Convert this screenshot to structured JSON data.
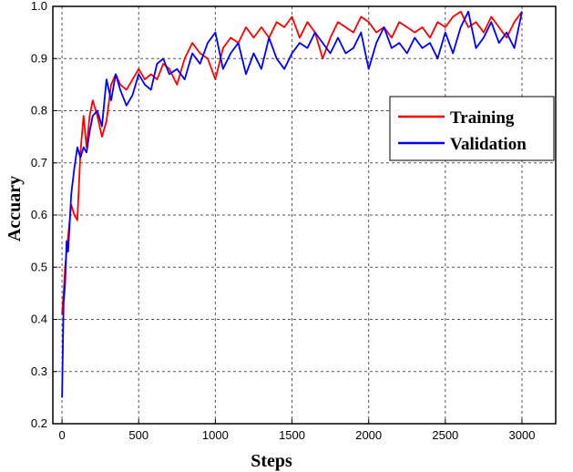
{
  "chart_data": {
    "type": "line",
    "xlabel": "Steps",
    "ylabel": "Accuary",
    "xlim": [
      -60,
      3220
    ],
    "ylim": [
      0.2,
      1.0
    ],
    "x_ticks": [
      "0",
      "500",
      "1000",
      "1500",
      "2000",
      "2500",
      "3000"
    ],
    "y_ticks": [
      "0.2",
      "0.3",
      "0.4",
      "0.5",
      "0.6",
      "0.7",
      "0.8",
      "0.9",
      "1.0"
    ],
    "grid": true,
    "legend_position": "right",
    "series": [
      {
        "name": "Training",
        "color": "#ff0000",
        "x": [
          0,
          10,
          20,
          30,
          40,
          60,
          80,
          100,
          120,
          140,
          160,
          180,
          200,
          230,
          260,
          290,
          320,
          350,
          380,
          420,
          460,
          500,
          540,
          580,
          620,
          660,
          700,
          750,
          800,
          850,
          900,
          950,
          1000,
          1050,
          1100,
          1150,
          1200,
          1250,
          1300,
          1350,
          1400,
          1450,
          1500,
          1550,
          1600,
          1650,
          1700,
          1750,
          1800,
          1850,
          1900,
          1950,
          2000,
          2050,
          2100,
          2150,
          2200,
          2250,
          2300,
          2350,
          2400,
          2450,
          2500,
          2550,
          2600,
          2650,
          2700,
          2750,
          2800,
          2850,
          2900,
          2950,
          3000
        ],
        "y": [
          0.41,
          0.45,
          0.5,
          0.53,
          0.56,
          0.62,
          0.6,
          0.59,
          0.72,
          0.79,
          0.73,
          0.79,
          0.82,
          0.79,
          0.75,
          0.78,
          0.85,
          0.87,
          0.85,
          0.84,
          0.86,
          0.88,
          0.86,
          0.87,
          0.86,
          0.89,
          0.88,
          0.85,
          0.9,
          0.93,
          0.91,
          0.9,
          0.86,
          0.92,
          0.94,
          0.93,
          0.96,
          0.94,
          0.96,
          0.94,
          0.97,
          0.96,
          0.98,
          0.94,
          0.97,
          0.95,
          0.9,
          0.94,
          0.97,
          0.96,
          0.95,
          0.98,
          0.97,
          0.95,
          0.96,
          0.94,
          0.97,
          0.96,
          0.95,
          0.96,
          0.94,
          0.97,
          0.96,
          0.98,
          0.99,
          0.96,
          0.97,
          0.95,
          0.98,
          0.96,
          0.94,
          0.97,
          0.99
        ]
      },
      {
        "name": "Validation",
        "color": "#0000ff",
        "x": [
          0,
          10,
          20,
          30,
          40,
          60,
          80,
          100,
          120,
          140,
          160,
          180,
          200,
          230,
          260,
          290,
          320,
          350,
          380,
          420,
          460,
          500,
          540,
          580,
          620,
          660,
          700,
          750,
          800,
          850,
          900,
          950,
          1000,
          1050,
          1100,
          1150,
          1200,
          1250,
          1300,
          1350,
          1400,
          1450,
          1500,
          1550,
          1600,
          1650,
          1700,
          1750,
          1800,
          1850,
          1900,
          1950,
          2000,
          2050,
          2100,
          2150,
          2200,
          2250,
          2300,
          2350,
          2400,
          2450,
          2500,
          2550,
          2600,
          2650,
          2700,
          2750,
          2800,
          2850,
          2900,
          2950,
          3000
        ],
        "y": [
          0.25,
          0.43,
          0.47,
          0.55,
          0.53,
          0.64,
          0.69,
          0.73,
          0.71,
          0.73,
          0.72,
          0.76,
          0.79,
          0.8,
          0.77,
          0.86,
          0.82,
          0.87,
          0.84,
          0.81,
          0.83,
          0.87,
          0.85,
          0.84,
          0.89,
          0.9,
          0.87,
          0.88,
          0.86,
          0.91,
          0.89,
          0.93,
          0.95,
          0.88,
          0.91,
          0.93,
          0.87,
          0.91,
          0.88,
          0.94,
          0.9,
          0.88,
          0.91,
          0.93,
          0.92,
          0.95,
          0.93,
          0.91,
          0.94,
          0.91,
          0.92,
          0.95,
          0.88,
          0.93,
          0.96,
          0.92,
          0.93,
          0.91,
          0.94,
          0.92,
          0.93,
          0.9,
          0.95,
          0.91,
          0.96,
          0.99,
          0.92,
          0.94,
          0.97,
          0.93,
          0.95,
          0.92,
          0.99
        ]
      }
    ]
  }
}
